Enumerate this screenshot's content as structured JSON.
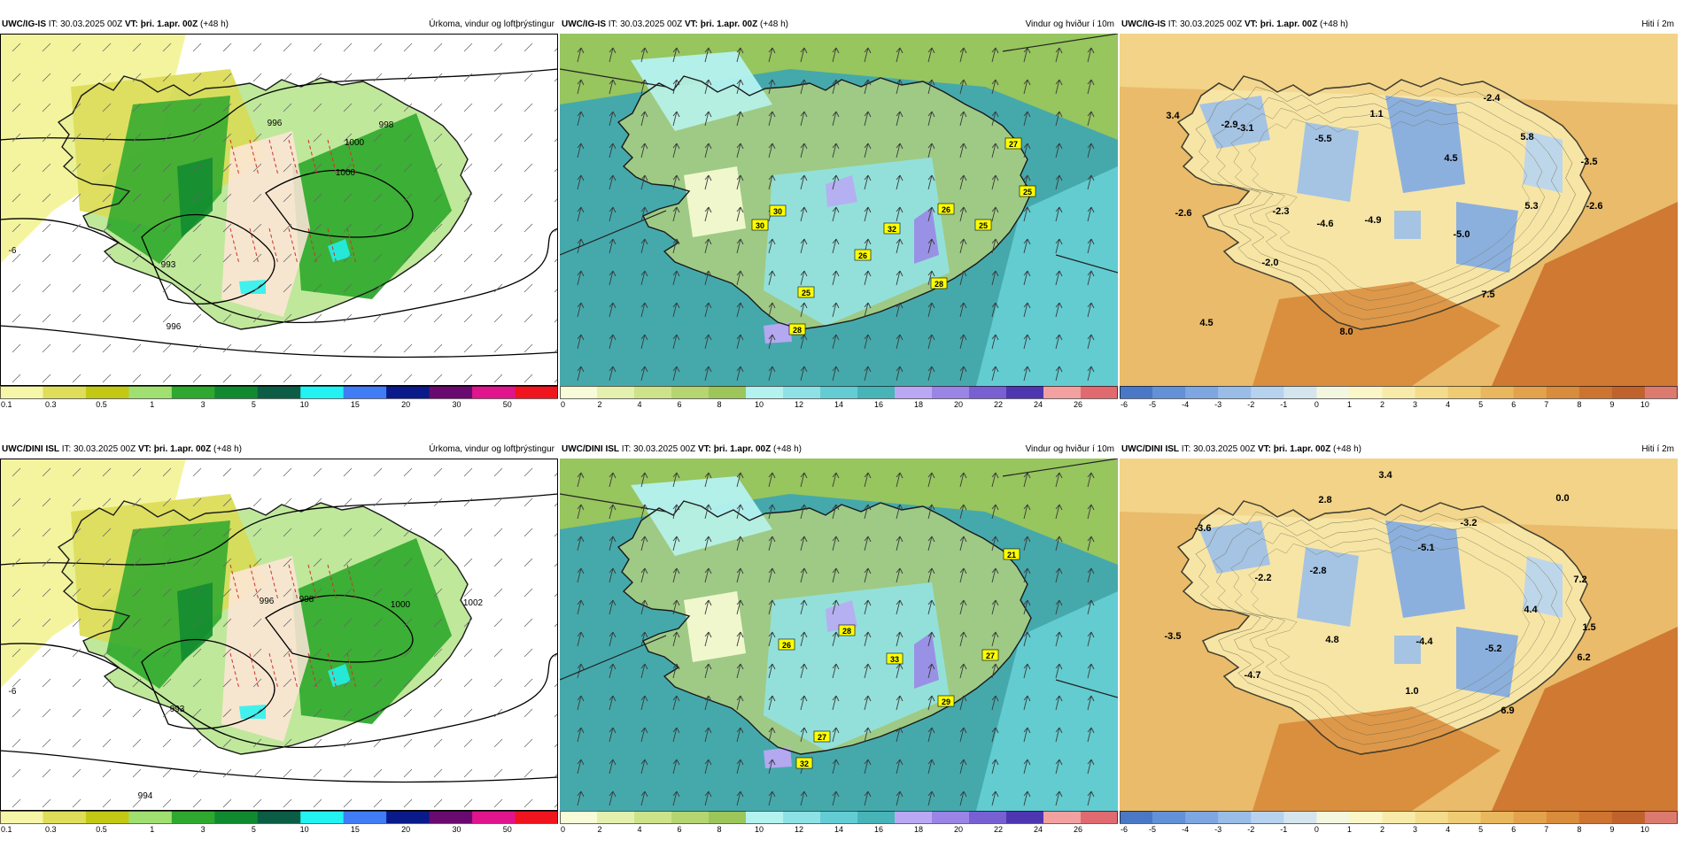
{
  "panels": [
    {
      "id": "p1",
      "model": "UWC/IG-IS",
      "it_label": "IT:",
      "it": "30.03.2025 00Z",
      "vt_label": "VT:",
      "vt": "þri. 1.apr. 00Z",
      "lead": "(+48 h)",
      "title": "Úrkoma, vindur og loftþrýstingur",
      "kind": "precip",
      "labels": [
        {
          "text": "993",
          "cls": "isobar"
        },
        {
          "text": "1000",
          "cls": "isobar"
        },
        {
          "text": "1000",
          "cls": "isobar"
        },
        {
          "text": "998",
          "cls": "isobar"
        },
        {
          "text": "996",
          "cls": "isobar"
        },
        {
          "text": "-6",
          "cls": "isobar"
        },
        {
          "text": "996",
          "cls": "isobar"
        }
      ]
    },
    {
      "id": "p2",
      "model": "UWC/IG-IS",
      "it_label": "IT:",
      "it": "30.03.2025 00Z",
      "vt_label": "VT:",
      "vt": "þri. 1.apr. 00Z",
      "lead": "(+48 h)",
      "title": "Vindur og hviður í 10m",
      "kind": "wind",
      "labels": [
        {
          "text": "30"
        },
        {
          "text": "30"
        },
        {
          "text": "32"
        },
        {
          "text": "26"
        },
        {
          "text": "26"
        },
        {
          "text": "25"
        },
        {
          "text": "25"
        },
        {
          "text": "28"
        },
        {
          "text": "28"
        },
        {
          "text": "27"
        },
        {
          "text": "25"
        }
      ]
    },
    {
      "id": "p3",
      "model": "UWC/IG-IS",
      "it_label": "IT:",
      "it": "30.03.2025 00Z",
      "vt_label": "VT:",
      "vt": "þri. 1.apr. 00Z",
      "lead": "(+48 h)",
      "title": "Hiti í 2m",
      "kind": "temp",
      "labels": [
        {
          "text": "3.4"
        },
        {
          "text": "-2.9"
        },
        {
          "text": "-2.6"
        },
        {
          "text": "-3.1"
        },
        {
          "text": "-5.5"
        },
        {
          "text": "1.1"
        },
        {
          "text": "-2.4"
        },
        {
          "text": "5.8"
        },
        {
          "text": "-3.5"
        },
        {
          "text": "4.5"
        },
        {
          "text": "5.3"
        },
        {
          "text": "-2.6"
        },
        {
          "text": "-2.3"
        },
        {
          "text": "-4.6"
        },
        {
          "text": "-4.9"
        },
        {
          "text": "-5.0"
        },
        {
          "text": "-2.0"
        },
        {
          "text": "7.5"
        },
        {
          "text": "4.5"
        },
        {
          "text": "8.0"
        }
      ]
    },
    {
      "id": "p4",
      "model": "UWC/DINI ISL",
      "it_label": "IT:",
      "it": "30.03.2025 00Z",
      "vt_label": "VT:",
      "vt": "þri. 1.apr. 00Z",
      "lead": "(+48 h)",
      "title": "Úrkoma, vindur og loftþrýstingur",
      "kind": "precip",
      "labels": [
        {
          "text": "993",
          "cls": "isobar"
        },
        {
          "text": "996",
          "cls": "isobar"
        },
        {
          "text": "998",
          "cls": "isobar"
        },
        {
          "text": "1000",
          "cls": "isobar"
        },
        {
          "text": "1002",
          "cls": "isobar"
        },
        {
          "text": "-6",
          "cls": "isobar"
        },
        {
          "text": "994",
          "cls": "isobar"
        }
      ]
    },
    {
      "id": "p5",
      "model": "UWC/DINI ISL",
      "it_label": "IT:",
      "it": "30.03.2025 00Z",
      "vt_label": "VT:",
      "vt": "þri. 1.apr. 00Z",
      "lead": "(+48 h)",
      "title": "Vindur og hviður í 10m",
      "kind": "wind",
      "labels": [
        {
          "text": "26"
        },
        {
          "text": "28"
        },
        {
          "text": "33"
        },
        {
          "text": "27"
        },
        {
          "text": "29"
        },
        {
          "text": "27"
        },
        {
          "text": "32"
        },
        {
          "text": "21"
        }
      ]
    },
    {
      "id": "p6",
      "model": "UWC/DINI ISL",
      "it_label": "IT:",
      "it": "30.03.2025 00Z",
      "vt_label": "VT:",
      "vt": "þri. 1.apr. 00Z",
      "lead": "(+48 h)",
      "title": "Hiti í 2m",
      "kind": "temp",
      "labels": [
        {
          "text": "3.4"
        },
        {
          "text": "2.8"
        },
        {
          "text": "0.0"
        },
        {
          "text": "-3.6"
        },
        {
          "text": "-3.2"
        },
        {
          "text": "-5.1"
        },
        {
          "text": "-2.2"
        },
        {
          "text": "-2.8"
        },
        {
          "text": "7.2"
        },
        {
          "text": "4.4"
        },
        {
          "text": "1.5"
        },
        {
          "text": "-3.5"
        },
        {
          "text": "4.8"
        },
        {
          "text": "-4.4"
        },
        {
          "text": "-5.2"
        },
        {
          "text": "6.2"
        },
        {
          "text": "-4.7"
        },
        {
          "text": "1.0"
        },
        {
          "text": "6.9"
        }
      ]
    }
  ],
  "legends": {
    "precip": {
      "ticks": [
        "0.1",
        "0.3",
        "0.5",
        "1",
        "3",
        "5",
        "10",
        "15",
        "20",
        "30",
        "50"
      ],
      "colors": [
        "#f6f6a8",
        "#dede5a",
        "#c2c814",
        "#a0e070",
        "#2ea82e",
        "#108a30",
        "#0b5e45",
        "#22f2f2",
        "#3f7cf6",
        "#0a1a8a",
        "#6a0a70",
        "#e0148c",
        "#f0141e"
      ]
    },
    "wind": {
      "ticks": [
        "0",
        "2",
        "4",
        "6",
        "8",
        "10",
        "12",
        "14",
        "16",
        "18",
        "20",
        "22",
        "24",
        "26"
      ],
      "colors": [
        "#f7fbd8",
        "#e4f0ae",
        "#cde38a",
        "#b5d570",
        "#9cc65a",
        "#b4f2f0",
        "#8ee2e6",
        "#64cdd3",
        "#47b4b8",
        "#bba8f4",
        "#9a84e6",
        "#7860d2",
        "#4e36b0",
        "#f2a0a0",
        "#e06a70"
      ]
    },
    "temp": {
      "ticks": [
        "-6",
        "-5",
        "-4",
        "-3",
        "-2",
        "-1",
        "0",
        "1",
        "2",
        "3",
        "4",
        "5",
        "6",
        "7",
        "8",
        "9",
        "10"
      ],
      "colors": [
        "#4a78c6",
        "#6391d8",
        "#7ea7e2",
        "#9abde8",
        "#b6d2ee",
        "#d4e5ee",
        "#f4f7e0",
        "#fbf6c8",
        "#f8ebaa",
        "#f4dc8c",
        "#efcb74",
        "#e9b75e",
        "#e2a34c",
        "#d98c3c",
        "#cd7530",
        "#c0622c",
        "#dd7a70"
      ]
    }
  }
}
